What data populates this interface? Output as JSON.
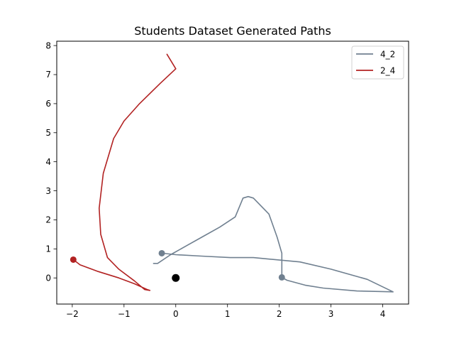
{
  "chart_data": {
    "type": "line",
    "title": "Students Dataset Generated Paths",
    "xlabel": "",
    "ylabel": "",
    "xlim": [
      -2.3,
      4.5
    ],
    "ylim": [
      -0.9,
      8.15
    ],
    "xticks": [
      -2,
      -1,
      0,
      1,
      2,
      3,
      4
    ],
    "yticks": [
      0,
      1,
      2,
      3,
      4,
      5,
      6,
      7,
      8
    ],
    "grid": false,
    "legend_position": "top-right",
    "series": [
      {
        "name": "4_2",
        "color": "#708090",
        "points": [
          [
            -0.43,
            0.5
          ],
          [
            -0.35,
            0.5
          ],
          [
            -0.1,
            0.8
          ],
          [
            0.2,
            1.1
          ],
          [
            0.5,
            1.4
          ],
          [
            0.85,
            1.75
          ],
          [
            1.15,
            2.1
          ],
          [
            1.3,
            2.75
          ],
          [
            1.4,
            2.8
          ],
          [
            1.5,
            2.75
          ],
          [
            1.8,
            2.2
          ],
          [
            1.96,
            1.4
          ],
          [
            2.05,
            0.85
          ],
          [
            2.05,
            0.02
          ],
          [
            2.15,
            -0.08
          ],
          [
            2.5,
            -0.25
          ],
          [
            2.85,
            -0.35
          ],
          [
            3.5,
            -0.45
          ],
          [
            4.2,
            -0.48
          ],
          [
            3.7,
            -0.05
          ],
          [
            3.0,
            0.3
          ],
          [
            2.4,
            0.55
          ],
          [
            1.5,
            0.7
          ],
          [
            1.05,
            0.7
          ],
          [
            0.5,
            0.75
          ],
          [
            0.0,
            0.8
          ],
          [
            -0.25,
            0.85
          ]
        ],
        "start_marker": [
          2.05,
          0.02
        ],
        "end_marker": [
          -0.27,
          0.85
        ]
      },
      {
        "name": "2_4",
        "color": "#b22222",
        "points": [
          [
            -1.98,
            0.63
          ],
          [
            -1.85,
            0.45
          ],
          [
            -1.5,
            0.22
          ],
          [
            -1.1,
            0.0
          ],
          [
            -0.8,
            -0.2
          ],
          [
            -0.55,
            -0.4
          ],
          [
            -0.5,
            -0.43
          ],
          [
            -0.6,
            -0.4
          ],
          [
            -0.8,
            -0.1
          ],
          [
            -1.1,
            0.3
          ],
          [
            -1.32,
            0.7
          ],
          [
            -1.45,
            1.5
          ],
          [
            -1.48,
            2.4
          ],
          [
            -1.4,
            3.6
          ],
          [
            -1.2,
            4.8
          ],
          [
            -1.0,
            5.4
          ],
          [
            -0.7,
            6.0
          ],
          [
            -0.3,
            6.7
          ],
          [
            0.0,
            7.2
          ],
          [
            -0.17,
            7.7
          ]
        ],
        "start_marker": [
          -1.98,
          0.63
        ],
        "end_marker": null
      }
    ],
    "origin_marker": {
      "x": 0,
      "y": 0,
      "color": "#000000"
    }
  }
}
